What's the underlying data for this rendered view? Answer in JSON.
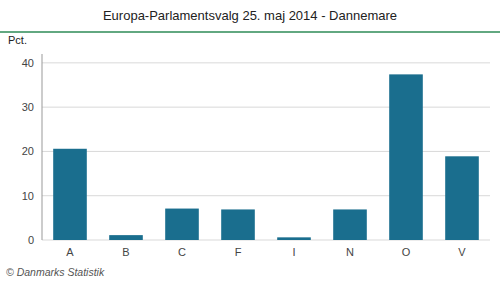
{
  "chart_data": {
    "type": "bar",
    "title": "Europa-Parlamentsvalg 25. maj 2014 - Dannemare",
    "categories": [
      "A",
      "B",
      "C",
      "F",
      "I",
      "N",
      "O",
      "V"
    ],
    "values": [
      20.6,
      1.1,
      7.1,
      6.9,
      0.6,
      6.9,
      37.4,
      18.9
    ],
    "color": "#1a6e8e",
    "ylabel": "Pct.",
    "ylim": [
      0,
      42
    ],
    "yticks": [
      0,
      10,
      20,
      30,
      40
    ],
    "grid": true,
    "footer": "© Danmarks Statistik"
  }
}
